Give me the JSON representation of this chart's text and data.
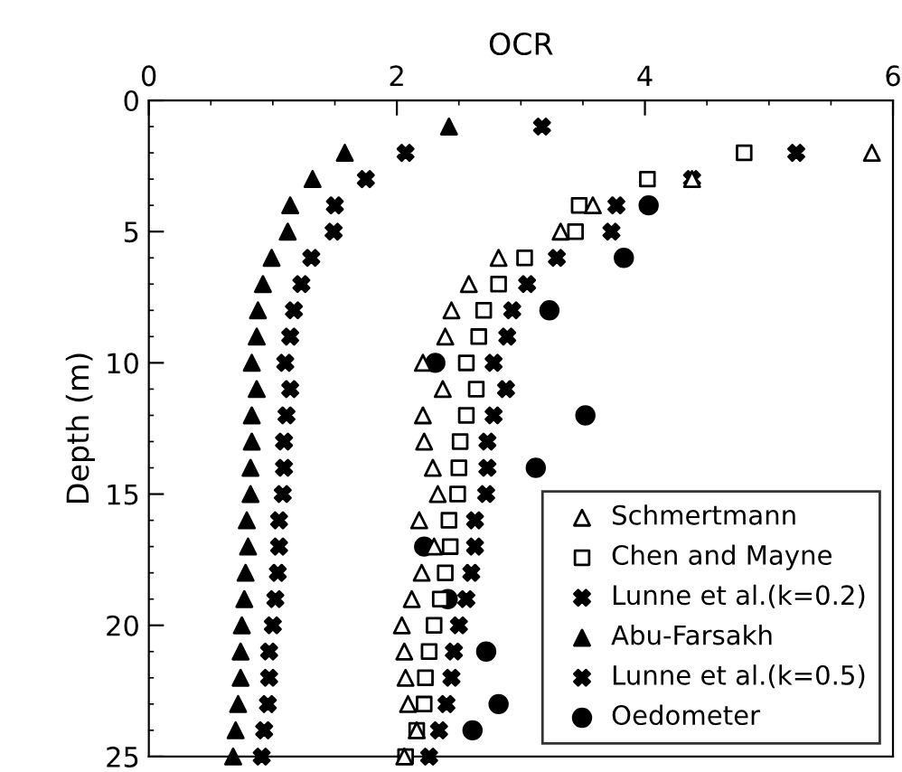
{
  "chart_data": {
    "type": "scatter",
    "xlabel": "OCR",
    "ylabel": "Depth (m)",
    "xlim": [
      0,
      6
    ],
    "xticks": [
      0,
      2,
      4,
      6
    ],
    "ylim": [
      25,
      0
    ],
    "yticks": [
      0,
      5,
      10,
      15,
      20,
      25
    ],
    "grid": false,
    "legend": "bottom right",
    "series": [
      {
        "name": "Schmertmann",
        "color": "#ffffff",
        "marker": "triangle",
        "x": [
          5.83,
          4.38,
          3.58,
          3.32,
          2.82,
          2.58,
          2.44,
          2.39,
          2.21,
          2.37,
          2.21,
          2.22,
          2.29,
          2.33,
          2.18,
          2.3,
          2.2,
          2.12,
          2.04,
          2.06,
          2.07,
          2.09,
          2.16,
          2.06
        ],
        "values": [
          2,
          3,
          4,
          5,
          6,
          7,
          8,
          9,
          10,
          11,
          12,
          13,
          14,
          15,
          16,
          17,
          18,
          19,
          20,
          21,
          22,
          23,
          24,
          25
        ]
      },
      {
        "name": "Chen and Mayne",
        "color": "#ffffff",
        "marker": "square",
        "x": [
          4.8,
          4.02,
          3.47,
          3.44,
          3.03,
          2.82,
          2.7,
          2.66,
          2.56,
          2.64,
          2.56,
          2.51,
          2.5,
          2.49,
          2.42,
          2.43,
          2.39,
          2.35,
          2.3,
          2.26,
          2.23,
          2.22,
          2.16,
          2.07
        ],
        "values": [
          2,
          3,
          4,
          5,
          6,
          7,
          8,
          9,
          10,
          11,
          12,
          13,
          14,
          15,
          16,
          17,
          18,
          19,
          20,
          21,
          22,
          23,
          24,
          25
        ]
      },
      {
        "name": "Lunne et al.(k=0.2)",
        "color": "#000000",
        "marker": "cross",
        "x": [
          3.17,
          2.07,
          1.75,
          1.5,
          1.49,
          1.31,
          1.23,
          1.17,
          1.14,
          1.1,
          1.14,
          1.11,
          1.09,
          1.09,
          1.08,
          1.05,
          1.05,
          1.04,
          1.02,
          1.0,
          0.97,
          0.97,
          0.96,
          0.93,
          0.91
        ],
        "values": [
          1,
          2,
          3,
          4,
          5,
          6,
          7,
          8,
          9,
          10,
          11,
          12,
          13,
          14,
          15,
          16,
          17,
          18,
          19,
          20,
          21,
          22,
          23,
          24,
          25
        ]
      },
      {
        "name": "Abu-Farsakh",
        "color": "#000000",
        "marker": "triangle",
        "x": [
          2.42,
          1.58,
          1.32,
          1.14,
          1.12,
          0.99,
          0.92,
          0.88,
          0.87,
          0.83,
          0.87,
          0.83,
          0.83,
          0.82,
          0.82,
          0.79,
          0.8,
          0.78,
          0.77,
          0.75,
          0.74,
          0.74,
          0.72,
          0.7,
          0.68
        ],
        "values": [
          1,
          2,
          3,
          4,
          5,
          6,
          7,
          8,
          9,
          10,
          11,
          12,
          13,
          14,
          15,
          16,
          17,
          18,
          19,
          20,
          21,
          22,
          23,
          24,
          25
        ]
      },
      {
        "name": "Lunne et al.(k=0.5)",
        "color": "#000000",
        "marker": "cross",
        "x": [
          5.22,
          4.38,
          3.77,
          3.73,
          3.29,
          3.05,
          2.93,
          2.89,
          2.78,
          2.88,
          2.78,
          2.73,
          2.73,
          2.72,
          2.63,
          2.63,
          2.6,
          2.56,
          2.5,
          2.46,
          2.44,
          2.4,
          2.34,
          2.26
        ],
        "values": [
          2,
          3,
          4,
          5,
          6,
          7,
          8,
          9,
          10,
          11,
          12,
          13,
          14,
          15,
          16,
          17,
          18,
          19,
          20,
          21,
          22,
          23,
          24,
          25
        ]
      },
      {
        "name": "Oedometer",
        "color": "#000000",
        "marker": "circle",
        "x": [
          4.03,
          3.83,
          3.23,
          2.31,
          3.52,
          3.12,
          2.22,
          2.41,
          2.72,
          2.82,
          2.61
        ],
        "values": [
          4,
          6,
          8,
          10,
          12,
          14,
          17,
          19,
          21,
          23,
          24
        ]
      }
    ]
  }
}
